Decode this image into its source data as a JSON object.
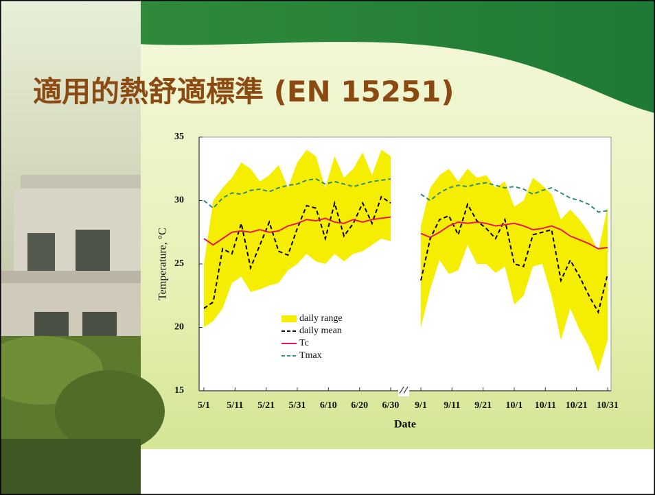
{
  "chart_data": {
    "type": "line",
    "title": "適用的熱舒適標準 (EN 15251)",
    "xlabel": "Date",
    "ylabel": "Temperature, °C",
    "xlim": [
      "5/1",
      "10/31"
    ],
    "x_break": [
      "6/30",
      "9/1"
    ],
    "xticks": [
      "5/1",
      "5/11",
      "5/21",
      "5/31",
      "6/10",
      "6/20",
      "6/30",
      "9/1",
      "9/11",
      "9/21",
      "10/1",
      "10/11",
      "10/21",
      "10/31"
    ],
    "ylim": [
      15,
      35
    ],
    "yticks": [
      15,
      20,
      25,
      30,
      35
    ],
    "legend": "lower left",
    "x": [
      "5/1",
      "5/4",
      "5/7",
      "5/10",
      "5/13",
      "5/16",
      "5/19",
      "5/22",
      "5/25",
      "5/28",
      "5/31",
      "6/3",
      "6/6",
      "6/9",
      "6/12",
      "6/15",
      "6/18",
      "6/21",
      "6/24",
      "6/27",
      "6/30",
      "9/1",
      "9/4",
      "9/7",
      "9/10",
      "9/13",
      "9/16",
      "9/19",
      "9/22",
      "9/25",
      "9/28",
      "10/1",
      "10/4",
      "10/7",
      "10/10",
      "10/13",
      "10/16",
      "10/19",
      "10/22",
      "10/25",
      "10/28",
      "10/31"
    ],
    "series": [
      {
        "name": "daily range",
        "color": "#f5ee00",
        "kind": "band",
        "high": [
          25,
          30,
          31,
          31.8,
          33,
          32.5,
          31.5,
          32,
          32.8,
          31,
          33,
          34,
          33.5,
          31,
          33.5,
          31.8,
          32.5,
          33.8,
          32,
          34,
          33.5,
          28,
          31,
          32,
          32.5,
          31.5,
          32.5,
          31.8,
          32,
          31,
          31.5,
          29.5,
          30,
          31.8,
          31.2,
          30.5,
          28.5,
          29.3,
          28.5,
          27.5,
          26,
          29.5
        ],
        "low": [
          20,
          20.5,
          21.5,
          23.5,
          24,
          22.8,
          23,
          23.3,
          23.5,
          24.5,
          25,
          25.8,
          25.2,
          25,
          25.8,
          25.2,
          25.8,
          26,
          26.5,
          27,
          26.8,
          20,
          23,
          25.3,
          24.2,
          24.5,
          26.5,
          25,
          25,
          24.3,
          24.8,
          21.8,
          22.5,
          24.8,
          25,
          22.5,
          19,
          21.5,
          19.8,
          18.5,
          16.5,
          19
        ]
      },
      {
        "name": "daily mean",
        "color": "#000000",
        "dash": "dashed",
        "values": [
          21.5,
          22,
          26.2,
          25.8,
          28.2,
          24.7,
          26.5,
          28.3,
          26,
          25.7,
          27.8,
          29.6,
          29.4,
          27,
          29.8,
          27.2,
          28.2,
          29.8,
          28.2,
          30.3,
          29.8,
          23.7,
          27,
          28.5,
          28.8,
          27.3,
          29.7,
          28.4,
          27.8,
          27,
          28.5,
          25,
          24.8,
          27.3,
          27.5,
          27.7,
          23.7,
          25.3,
          24,
          22.5,
          21.2,
          24.2
        ]
      },
      {
        "name": "Tc",
        "color": "#e8175d",
        "values": [
          27,
          26.5,
          27,
          27.5,
          27.6,
          27.5,
          27.7,
          27.5,
          27.6,
          28,
          28.2,
          28.5,
          28.4,
          28.6,
          28.3,
          28.2,
          28.5,
          28.3,
          28.5,
          28.6,
          28.7,
          27.4,
          27.1,
          27.5,
          28,
          28.3,
          28.2,
          28.3,
          28.2,
          28,
          28.1,
          28.2,
          28,
          27.7,
          27.8,
          28,
          27.7,
          27.2,
          26.9,
          26.6,
          26.2,
          26.3
        ]
      },
      {
        "name": "Tmax",
        "color": "#2e8b7a",
        "dash": "dashed",
        "values": [
          30,
          29.4,
          30.2,
          30.6,
          30.5,
          30.8,
          30.9,
          30.7,
          31,
          31.2,
          31.3,
          31.6,
          31.7,
          31.3,
          31.5,
          31.3,
          31.1,
          31.3,
          31.5,
          31.6,
          31.7,
          30.5,
          30,
          30.6,
          31,
          31.2,
          31.1,
          31.3,
          31.4,
          31.2,
          31,
          31.1,
          30.9,
          30.5,
          30.8,
          31,
          30.6,
          30.2,
          30,
          29.7,
          29.1,
          29.2
        ]
      }
    ]
  }
}
